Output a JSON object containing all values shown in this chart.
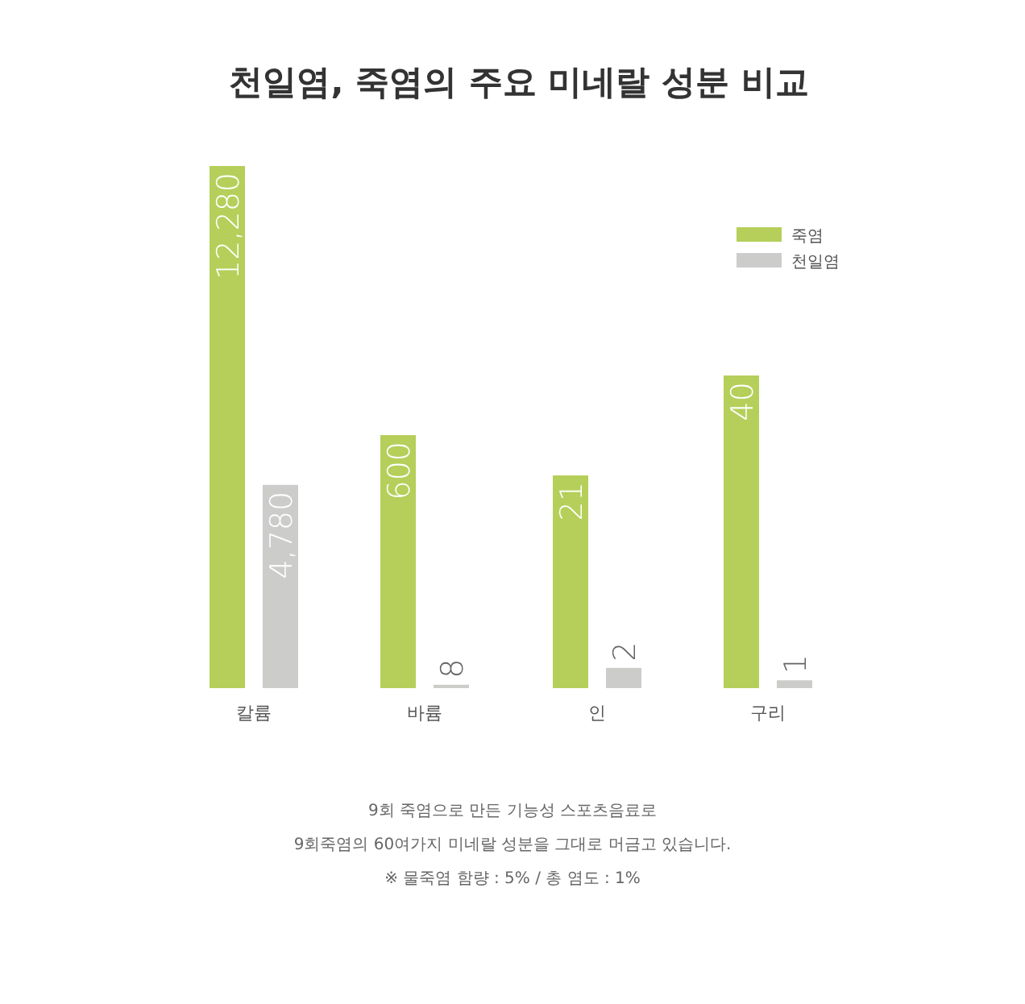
{
  "chart_data": [
    {
      "type": "bar",
      "title": "천일염, 죽염의 주요 미네랄 성분 비교",
      "categories": [
        "칼륨"
      ],
      "series": [
        {
          "color": "#b5cf5a",
          "values": [
            12280
          ],
          "value_labels": [
            "12,280"
          ]
        },
        {
          "color": "#cccccb",
          "values": [
            4780
          ],
          "value_labels": [
            "4,780"
          ]
        }
      ],
      "annotations": [
        "9회 죽염으로 만든 기능성 스포츠음료로",
        "9회죽염의 60여가지 미네랄 성분을 그대로 머금고 있습니다.",
        "※ 물죽염 함량 : 5% / 총 염도 : 1%"
      ]
    },
    {
      "type": "bar",
      "categories": [
        "바륨"
      ],
      "data_labels": true,
      "series": [
        {
          "color": "#b5cf5a",
          "values": [
            600
          ]
        },
        {
          "color": "#cccccb",
          "values": [
            8
          ]
        }
      ]
    },
    {
      "type": "bar",
      "categories": [
        "인"
      ],
      "data_labels": true,
      "series": [
        {
          "color": "#b5cf5a",
          "values": [
            21
          ]
        },
        {
          "color": "#cccccb",
          "values": [
            2
          ]
        }
      ]
    },
    {
      "type": "bar",
      "categories": [
        "구리"
      ],
      "data_labels": true,
      "legend": "top right",
      "series": [
        {
          "name": "죽염",
          "color": "#b5cf5a",
          "values": [
            40
          ]
        },
        {
          "name": "천일염",
          "color": "#cccccb",
          "values": [
            1
          ]
        }
      ]
    }
  ]
}
